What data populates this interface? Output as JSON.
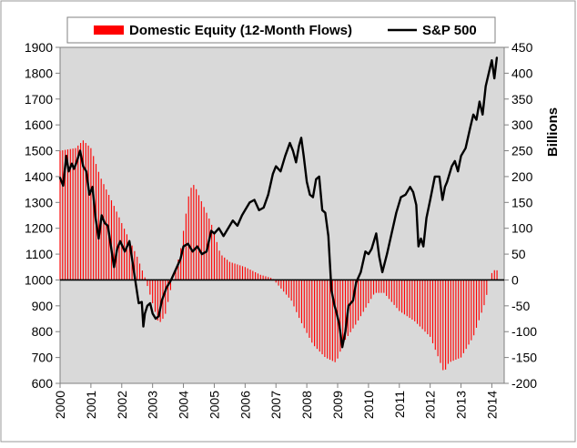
{
  "chart_data": {
    "type": "bar+line",
    "legend": {
      "placement": "top",
      "items": [
        {
          "label": "Domestic Equity (12-Month Flows)",
          "color": "#ff0000",
          "swatch": "bar"
        },
        {
          "label": "S&P 500",
          "color": "#000000",
          "swatch": "line"
        }
      ]
    },
    "x_axis": {
      "range": [
        2000,
        2014.4
      ],
      "tick_labels": [
        "2000",
        "2001",
        "2002",
        "2003",
        "2004",
        "2005",
        "2006",
        "2007",
        "2008",
        "2009",
        "2010",
        "2011",
        "2012",
        "2013",
        "2014"
      ]
    },
    "y_left": {
      "range": [
        600,
        1900
      ],
      "tick_labels": [
        "600",
        "700",
        "800",
        "900",
        "1000",
        "1100",
        "1200",
        "1300",
        "1400",
        "1500",
        "1600",
        "1700",
        "1800",
        "1900"
      ]
    },
    "y_right": {
      "label": "Billions",
      "range": [
        -200,
        450
      ],
      "tick_labels": [
        "-200",
        "-150",
        "-100",
        "-50",
        "0",
        "50",
        "100",
        "150",
        "200",
        "250",
        "300",
        "350",
        "400",
        "450"
      ]
    },
    "grid": false,
    "plot_background": "#d9d9d9",
    "series": [
      {
        "name": "Domestic Equity (12-Month Flows)",
        "kind": "bar",
        "axis": "right",
        "color": "#ff0000",
        "anchors": [
          [
            2000.0,
            250
          ],
          [
            2000.5,
            255
          ],
          [
            2000.75,
            270
          ],
          [
            2001.0,
            255
          ],
          [
            2001.3,
            200
          ],
          [
            2001.7,
            150
          ],
          [
            2002.0,
            110
          ],
          [
            2002.5,
            45
          ],
          [
            2002.75,
            5
          ],
          [
            2003.0,
            -45
          ],
          [
            2003.2,
            -85
          ],
          [
            2003.4,
            -70
          ],
          [
            2003.6,
            -15
          ],
          [
            2003.9,
            55
          ],
          [
            2004.2,
            175
          ],
          [
            2004.35,
            185
          ],
          [
            2004.6,
            150
          ],
          [
            2004.9,
            110
          ],
          [
            2005.2,
            50
          ],
          [
            2005.5,
            35
          ],
          [
            2006.0,
            25
          ],
          [
            2006.5,
            10
          ],
          [
            2006.9,
            3
          ],
          [
            2007.0,
            -5
          ],
          [
            2007.5,
            -40
          ],
          [
            2007.8,
            -80
          ],
          [
            2008.2,
            -125
          ],
          [
            2008.6,
            -150
          ],
          [
            2008.95,
            -160
          ],
          [
            2009.2,
            -120
          ],
          [
            2009.6,
            -85
          ],
          [
            2009.9,
            -55
          ],
          [
            2010.2,
            -25
          ],
          [
            2010.5,
            -25
          ],
          [
            2011.0,
            -60
          ],
          [
            2011.5,
            -80
          ],
          [
            2012.0,
            -110
          ],
          [
            2012.3,
            -155
          ],
          [
            2012.45,
            -180
          ],
          [
            2012.6,
            -160
          ],
          [
            2013.0,
            -150
          ],
          [
            2013.4,
            -110
          ],
          [
            2013.8,
            -40
          ],
          [
            2013.95,
            10
          ],
          [
            2014.1,
            20
          ],
          [
            2014.2,
            18
          ]
        ]
      },
      {
        "name": "S&P 500",
        "kind": "line",
        "axis": "left",
        "color": "#000000",
        "points": [
          [
            2000.0,
            1395
          ],
          [
            2000.1,
            1365
          ],
          [
            2000.2,
            1480
          ],
          [
            2000.28,
            1420
          ],
          [
            2000.38,
            1450
          ],
          [
            2000.45,
            1430
          ],
          [
            2000.55,
            1460
          ],
          [
            2000.65,
            1500
          ],
          [
            2000.75,
            1440
          ],
          [
            2000.85,
            1420
          ],
          [
            2000.95,
            1330
          ],
          [
            2001.05,
            1360
          ],
          [
            2001.15,
            1240
          ],
          [
            2001.25,
            1160
          ],
          [
            2001.35,
            1250
          ],
          [
            2001.45,
            1220
          ],
          [
            2001.55,
            1210
          ],
          [
            2001.65,
            1130
          ],
          [
            2001.75,
            1050
          ],
          [
            2001.85,
            1120
          ],
          [
            2001.95,
            1150
          ],
          [
            2002.1,
            1110
          ],
          [
            2002.25,
            1150
          ],
          [
            2002.35,
            1070
          ],
          [
            2002.45,
            990
          ],
          [
            2002.55,
            910
          ],
          [
            2002.65,
            915
          ],
          [
            2002.7,
            820
          ],
          [
            2002.75,
            870
          ],
          [
            2002.83,
            900
          ],
          [
            2002.92,
            910
          ],
          [
            2003.0,
            870
          ],
          [
            2003.1,
            850
          ],
          [
            2003.2,
            860
          ],
          [
            2003.3,
            920
          ],
          [
            2003.45,
            970
          ],
          [
            2003.6,
            1000
          ],
          [
            2003.75,
            1040
          ],
          [
            2003.9,
            1080
          ],
          [
            2004.0,
            1130
          ],
          [
            2004.15,
            1140
          ],
          [
            2004.3,
            1110
          ],
          [
            2004.45,
            1130
          ],
          [
            2004.6,
            1100
          ],
          [
            2004.75,
            1110
          ],
          [
            2004.9,
            1190
          ],
          [
            2005.0,
            1180
          ],
          [
            2005.15,
            1200
          ],
          [
            2005.3,
            1170
          ],
          [
            2005.45,
            1200
          ],
          [
            2005.6,
            1230
          ],
          [
            2005.75,
            1210
          ],
          [
            2005.9,
            1250
          ],
          [
            2006.0,
            1270
          ],
          [
            2006.15,
            1300
          ],
          [
            2006.3,
            1310
          ],
          [
            2006.45,
            1270
          ],
          [
            2006.6,
            1280
          ],
          [
            2006.75,
            1330
          ],
          [
            2006.9,
            1410
          ],
          [
            2007.0,
            1440
          ],
          [
            2007.15,
            1420
          ],
          [
            2007.3,
            1480
          ],
          [
            2007.45,
            1530
          ],
          [
            2007.55,
            1500
          ],
          [
            2007.65,
            1455
          ],
          [
            2007.75,
            1520
          ],
          [
            2007.82,
            1550
          ],
          [
            2007.9,
            1480
          ],
          [
            2008.0,
            1380
          ],
          [
            2008.1,
            1330
          ],
          [
            2008.2,
            1320
          ],
          [
            2008.3,
            1390
          ],
          [
            2008.4,
            1400
          ],
          [
            2008.5,
            1270
          ],
          [
            2008.6,
            1260
          ],
          [
            2008.7,
            1170
          ],
          [
            2008.8,
            960
          ],
          [
            2008.9,
            900
          ],
          [
            2008.95,
            880
          ],
          [
            2009.05,
            830
          ],
          [
            2009.15,
            740
          ],
          [
            2009.25,
            800
          ],
          [
            2009.35,
            900
          ],
          [
            2009.5,
            920
          ],
          [
            2009.6,
            990
          ],
          [
            2009.75,
            1030
          ],
          [
            2009.9,
            1110
          ],
          [
            2010.0,
            1100
          ],
          [
            2010.1,
            1120
          ],
          [
            2010.25,
            1180
          ],
          [
            2010.35,
            1090
          ],
          [
            2010.45,
            1030
          ],
          [
            2010.6,
            1100
          ],
          [
            2010.75,
            1180
          ],
          [
            2010.9,
            1260
          ],
          [
            2011.05,
            1320
          ],
          [
            2011.2,
            1330
          ],
          [
            2011.35,
            1360
          ],
          [
            2011.45,
            1340
          ],
          [
            2011.55,
            1290
          ],
          [
            2011.62,
            1130
          ],
          [
            2011.7,
            1160
          ],
          [
            2011.78,
            1130
          ],
          [
            2011.88,
            1240
          ],
          [
            2012.0,
            1310
          ],
          [
            2012.15,
            1400
          ],
          [
            2012.3,
            1400
          ],
          [
            2012.4,
            1310
          ],
          [
            2012.48,
            1360
          ],
          [
            2012.55,
            1380
          ],
          [
            2012.7,
            1440
          ],
          [
            2012.8,
            1460
          ],
          [
            2012.9,
            1420
          ],
          [
            2013.0,
            1480
          ],
          [
            2013.15,
            1510
          ],
          [
            2013.3,
            1590
          ],
          [
            2013.4,
            1640
          ],
          [
            2013.5,
            1620
          ],
          [
            2013.6,
            1690
          ],
          [
            2013.7,
            1640
          ],
          [
            2013.8,
            1750
          ],
          [
            2013.92,
            1810
          ],
          [
            2014.0,
            1850
          ],
          [
            2014.08,
            1780
          ],
          [
            2014.16,
            1860
          ]
        ]
      }
    ]
  }
}
